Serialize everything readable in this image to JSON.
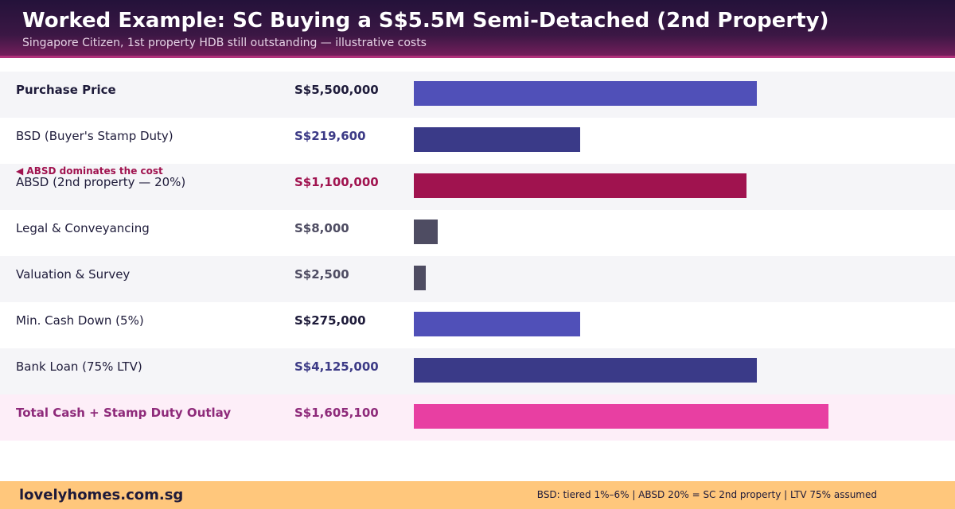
{
  "header": {
    "title": "Worked Example: SC Buying a S$5.5M Semi-Detached (2nd Property)",
    "subtitle": "Singapore Citizen, 1st property HDB still outstanding — illustrative costs"
  },
  "chart_data": {
    "type": "bar",
    "orientation": "horizontal",
    "categories": [
      "Purchase Price",
      "BSD (Buyer's Stamp Duty)",
      "ABSD (2nd property — 20%)",
      "Legal & Conveyancing",
      "Valuation & Survey",
      "Min. Cash Down (5%)",
      "Bank Loan (75% LTV)",
      "Total Cash + Stamp Duty Outlay"
    ],
    "values": [
      5500000,
      219600,
      1100000,
      8000,
      2500,
      275000,
      4125000,
      1605100
    ],
    "value_labels": [
      "S$5,500,000",
      "S$219,600",
      "S$1,100,000",
      "S$8,000",
      "S$2,500",
      "S$275,000",
      "S$4,125,000",
      "S$1,605,100"
    ],
    "bar_fill": [
      0.828,
      0.402,
      0.802,
      0.058,
      0.029,
      0.402,
      0.828,
      1.0
    ],
    "colors": [
      "#5050b8",
      "#3a3a88",
      "#a0134f",
      "#4e4c62",
      "#4e4c62",
      "#5050b8",
      "#3a3a88",
      "#e83fa2"
    ],
    "label_colors": [
      "#1e1b3a",
      "#1e1b3a",
      "#1e1b3a",
      "#1e1b3a",
      "#1e1b3a",
      "#1e1b3a",
      "#1e1b3a",
      "#8e2a7a"
    ],
    "value_colors": [
      "#1e1b3a",
      "#3c3a86",
      "#a0134f",
      "#4e4c62",
      "#4e4c62",
      "#1e1b3a",
      "#3c3a86",
      "#8e2a7a"
    ],
    "bold_labels": [
      true,
      false,
      false,
      false,
      false,
      false,
      false,
      true
    ],
    "annotation": {
      "row": 2,
      "text": "◀ ABSD dominates the cost"
    },
    "title": "",
    "xlabel": "",
    "ylabel": "",
    "grid": false,
    "legend": "none"
  },
  "footer": {
    "brand": "lovelyhomes.com.sg",
    "note": "BSD: tiered 1%–6% | ABSD 20% = SC 2nd property | LTV 75% assumed"
  }
}
